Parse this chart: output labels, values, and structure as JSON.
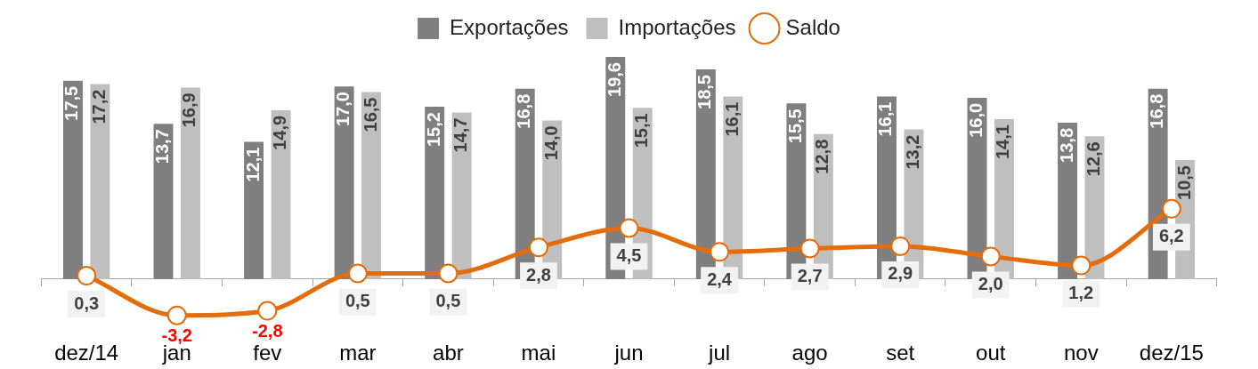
{
  "chart_data": {
    "type": "bar",
    "categories": [
      "dez/14",
      "jan",
      "fev",
      "mar",
      "abr",
      "mai",
      "jun",
      "jul",
      "ago",
      "set",
      "out",
      "nov",
      "dez/15"
    ],
    "series": [
      {
        "name": "Exportações",
        "color": "#7f7f7f",
        "values": [
          17.5,
          13.7,
          12.1,
          17.0,
          15.2,
          16.8,
          19.6,
          18.5,
          15.5,
          16.1,
          16.0,
          13.8,
          16.8
        ],
        "value_labels": [
          "17,5",
          "13,7",
          "12,1",
          "17,0",
          "15,2",
          "16,8",
          "19,6",
          "18,5",
          "15,5",
          "16,1",
          "16,0",
          "13,8",
          "16,8"
        ]
      },
      {
        "name": "Importações",
        "color": "#bfbfbf",
        "values": [
          17.2,
          16.9,
          14.9,
          16.5,
          14.7,
          14.0,
          15.1,
          16.1,
          12.8,
          13.2,
          14.1,
          12.6,
          10.5
        ],
        "value_labels": [
          "17,2",
          "16,9",
          "14,9",
          "16,5",
          "14,7",
          "14,0",
          "15,1",
          "16,1",
          "12,8",
          "13,2",
          "14,1",
          "12,6",
          "10,5"
        ]
      },
      {
        "name": "Saldo",
        "type": "line",
        "color": "#e46c0a",
        "values": [
          0.3,
          -3.2,
          -2.8,
          0.5,
          0.5,
          2.8,
          4.5,
          2.4,
          2.7,
          2.9,
          2.0,
          1.2,
          6.2
        ],
        "value_labels": [
          "0,3",
          "-3,2",
          "-2,8",
          "0,5",
          "0,5",
          "2,8",
          "4,5",
          "2,4",
          "2,7",
          "2,9",
          "2,0",
          "1,2",
          "6,2"
        ]
      }
    ],
    "legend": "top",
    "marker": "circle"
  }
}
